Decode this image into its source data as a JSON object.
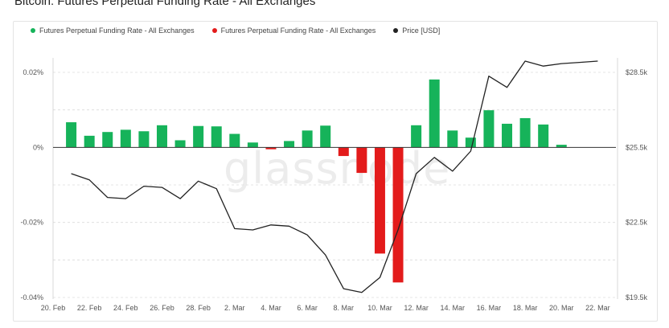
{
  "title": "Bitcoin: Futures Perpetual Funding Rate - All Exchanges",
  "watermark": "glassnode",
  "colors": {
    "positive": "#16b35a",
    "negative": "#e31b1b",
    "price": "#222222",
    "grid": "#dcdcdc"
  },
  "legend": [
    {
      "label": "Futures Perpetual Funding Rate - All Exchanges",
      "color": "#16b35a"
    },
    {
      "label": "Futures Perpetual Funding Rate - All Exchanges",
      "color": "#e31b1b"
    },
    {
      "label": "Price [USD]",
      "color": "#222222"
    }
  ],
  "chart_data": {
    "type": "bar",
    "title": "Bitcoin: Futures Perpetual Funding Rate - All Exchanges",
    "x_tick_labels": [
      "20. Feb",
      "22. Feb",
      "24. Feb",
      "26. Feb",
      "28. Feb",
      "2. Mar",
      "4. Mar",
      "6. Mar",
      "8. Mar",
      "10. Mar",
      "12. Mar",
      "14. Mar",
      "16. Mar",
      "18. Mar",
      "20. Mar",
      "22. Mar"
    ],
    "y_left": {
      "ticks": [
        "0.02%",
        "0%",
        "-0.02%",
        "-0.04%"
      ],
      "tick_values": [
        0.02,
        0,
        -0.02,
        -0.04
      ],
      "range": [
        -0.04,
        0.02
      ]
    },
    "y_right": {
      "ticks": [
        "$28.5k",
        "$25.5k",
        "$22.5k",
        "$19.5k"
      ],
      "tick_values": [
        28500,
        25500,
        22500,
        19500
      ],
      "range": [
        19500,
        28500
      ]
    },
    "grid": true,
    "legend_position": "top-left",
    "series": [
      {
        "name": "Futures Perpetual Funding Rate - All Exchanges",
        "type": "bar",
        "axis": "left",
        "x": [
          "2023-02-21",
          "2023-02-22",
          "2023-02-23",
          "2023-02-24",
          "2023-02-25",
          "2023-02-26",
          "2023-02-27",
          "2023-02-28",
          "2023-03-01",
          "2023-03-02",
          "2023-03-03",
          "2023-03-04",
          "2023-03-05",
          "2023-03-06",
          "2023-03-07",
          "2023-03-08",
          "2023-03-09",
          "2023-03-10",
          "2023-03-11",
          "2023-03-12",
          "2023-03-13",
          "2023-03-14",
          "2023-03-15",
          "2023-03-16",
          "2023-03-17",
          "2023-03-18",
          "2023-03-19",
          "2023-03-20",
          "2023-03-21"
        ],
        "values": [
          0.0067,
          0.0031,
          0.0041,
          0.0047,
          0.0043,
          0.0059,
          0.0019,
          0.0057,
          0.0056,
          0.0036,
          0.0013,
          -0.0005,
          0.0017,
          0.0045,
          0.0058,
          -0.0023,
          -0.0068,
          -0.0283,
          -0.036,
          0.0059,
          0.0181,
          0.0045,
          0.0026,
          0.0099,
          0.0063,
          0.0078,
          0.0061,
          0.0007,
          0.0
        ]
      },
      {
        "name": "Price [USD]",
        "type": "line",
        "axis": "right",
        "x": [
          "2023-02-21",
          "2023-02-22",
          "2023-02-23",
          "2023-02-24",
          "2023-02-25",
          "2023-02-26",
          "2023-02-27",
          "2023-02-28",
          "2023-03-01",
          "2023-03-02",
          "2023-03-03",
          "2023-03-04",
          "2023-03-05",
          "2023-03-06",
          "2023-03-07",
          "2023-03-08",
          "2023-03-09",
          "2023-03-10",
          "2023-03-11",
          "2023-03-12",
          "2023-03-13",
          "2023-03-14",
          "2023-03-15",
          "2023-03-16",
          "2023-03-17",
          "2023-03-18",
          "2023-03-19",
          "2023-03-20",
          "2023-03-21",
          "2023-03-22"
        ],
        "values": [
          24450,
          24200,
          23500,
          23450,
          23950,
          23900,
          23450,
          24150,
          23850,
          22250,
          22200,
          22400,
          22350,
          22000,
          21200,
          19850,
          19700,
          20300,
          22200,
          24450,
          25100,
          24550,
          25350,
          28350,
          27900,
          28950,
          28750,
          28850,
          28900,
          28950
        ]
      }
    ]
  }
}
